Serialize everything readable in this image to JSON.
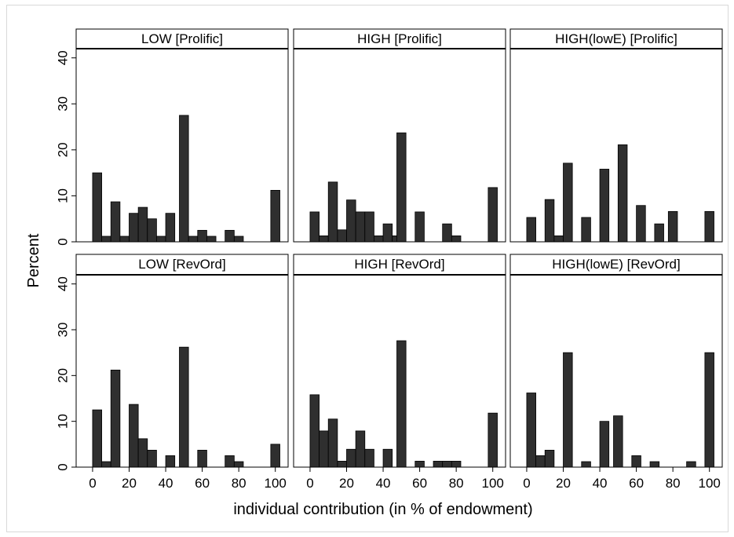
{
  "figure": {
    "ylabel": "Percent",
    "xlabel": "individual contribution (in % of endowment)",
    "y_ticks": [
      0,
      10,
      20,
      30,
      40
    ],
    "x_ticks": [
      0,
      20,
      40,
      60,
      80,
      100
    ]
  },
  "chart_data": [
    {
      "type": "bar",
      "title": "LOW [Prolific]",
      "xlim": [
        -9,
        107
      ],
      "ylim": [
        0,
        42
      ],
      "x": [
        2.5,
        7.5,
        12.5,
        17.5,
        22.5,
        27.5,
        32.5,
        37.5,
        42.5,
        50,
        55,
        60,
        65,
        75,
        80,
        100
      ],
      "values": [
        15,
        1.2,
        8.7,
        1.2,
        6.2,
        7.5,
        5,
        1.2,
        6.2,
        27.5,
        1.2,
        2.5,
        1.2,
        2.5,
        1.2,
        11.2
      ]
    },
    {
      "type": "bar",
      "title": "HIGH [Prolific]",
      "xlim": [
        -9,
        107
      ],
      "ylim": [
        0,
        42
      ],
      "x": [
        2.5,
        7.5,
        12.5,
        17.5,
        22.5,
        27.5,
        32.5,
        37.5,
        42.5,
        47.5,
        50,
        60,
        75,
        80,
        100
      ],
      "values": [
        6.5,
        1.3,
        13,
        2.6,
        9.1,
        6.5,
        6.5,
        1.3,
        3.9,
        1.3,
        23.7,
        6.5,
        3.9,
        1.3,
        11.8
      ]
    },
    {
      "type": "bar",
      "title": "HIGH(lowE) [Prolific]",
      "xlim": [
        -9,
        107
      ],
      "ylim": [
        0,
        42
      ],
      "x": [
        2.5,
        12.5,
        17.5,
        22.5,
        32.5,
        42.5,
        52.5,
        62.5,
        72.5,
        80,
        100
      ],
      "values": [
        5.3,
        9.2,
        1.3,
        17.1,
        5.3,
        15.8,
        21.1,
        7.9,
        3.9,
        6.6,
        6.6
      ]
    },
    {
      "type": "bar",
      "title": "LOW [RevOrd]",
      "xlim": [
        -9,
        107
      ],
      "ylim": [
        0,
        42
      ],
      "x": [
        2.5,
        7.5,
        12.5,
        22.5,
        27.5,
        32.5,
        42.5,
        50,
        60,
        75,
        80,
        100
      ],
      "values": [
        12.5,
        1.2,
        21.2,
        13.7,
        6.2,
        3.7,
        2.5,
        26.2,
        3.7,
        2.5,
        1.2,
        5
      ]
    },
    {
      "type": "bar",
      "title": "HIGH [RevOrd]",
      "xlim": [
        -9,
        107
      ],
      "ylim": [
        0,
        42
      ],
      "x": [
        2.5,
        7.5,
        12.5,
        17.5,
        22.5,
        27.5,
        32.5,
        42.5,
        50,
        60,
        70,
        75,
        80,
        100
      ],
      "values": [
        15.8,
        7.9,
        10.5,
        1.3,
        3.9,
        7.9,
        3.9,
        3.9,
        27.6,
        1.3,
        1.3,
        1.3,
        1.3,
        11.8
      ]
    },
    {
      "type": "bar",
      "title": "HIGH(lowE) [RevOrd]",
      "xlim": [
        -9,
        107
      ],
      "ylim": [
        0,
        42
      ],
      "x": [
        2.5,
        7.5,
        12.5,
        22.5,
        32.5,
        42.5,
        50,
        60,
        70,
        90,
        100
      ],
      "values": [
        16.2,
        2.5,
        3.7,
        25,
        1.2,
        10,
        11.2,
        2.5,
        1.2,
        1.2,
        25
      ]
    }
  ]
}
